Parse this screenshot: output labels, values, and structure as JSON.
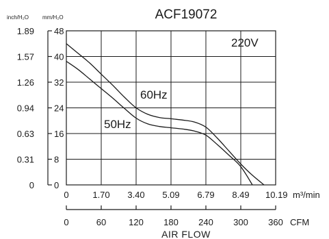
{
  "chart_data": {
    "type": "line",
    "title": "ACF19072",
    "voltage_label": "220V",
    "y_units_left": "inch/H₂O",
    "y_units_right": "mm/H₂O",
    "y_ticks_mm": [
      "48",
      "40",
      "32",
      "24",
      "16",
      "8",
      "0"
    ],
    "y_ticks_inch": [
      "1.89",
      "1.57",
      "1.26",
      "0.94",
      "0.63",
      "0.31",
      "0"
    ],
    "ylim_mm": [
      0,
      48
    ],
    "x_ticks_m3": [
      "0",
      "1.70",
      "3.40",
      "5.09",
      "6.79",
      "8.49",
      "10.19"
    ],
    "x_unit_m3": "m³/min",
    "x_ticks_cfm": [
      "0",
      "60",
      "120",
      "180",
      "240",
      "300",
      "360"
    ],
    "x_unit_cfm": "CFM",
    "xlim_cfm": [
      0,
      360
    ],
    "xlabel": "AIR FLOW",
    "grid": true,
    "series": [
      {
        "name": "60Hz",
        "x": [
          0,
          20,
          40,
          60,
          80,
          100,
          120,
          140,
          160,
          180,
          200,
          220,
          240,
          260,
          280,
          300,
          320,
          340
        ],
        "y": [
          44,
          41,
          38,
          34.5,
          31,
          27.3,
          24,
          22,
          21,
          20.6,
          20.2,
          19.6,
          18,
          14.5,
          10.5,
          6.5,
          3,
          0
        ]
      },
      {
        "name": "50Hz",
        "x": [
          0,
          20,
          40,
          60,
          80,
          100,
          120,
          140,
          160,
          180,
          200,
          220,
          240,
          260,
          280,
          300,
          320
        ],
        "y": [
          38.5,
          36,
          33,
          30,
          27,
          23.8,
          20.8,
          19,
          18.2,
          17.8,
          17.4,
          16.8,
          15.5,
          12.5,
          9.2,
          5.7,
          0
        ]
      }
    ]
  }
}
